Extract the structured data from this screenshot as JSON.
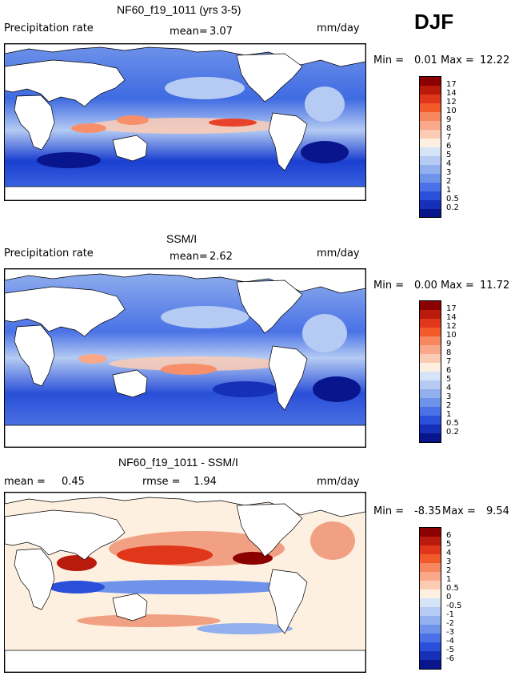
{
  "season": "DJF",
  "panels": [
    {
      "title": "NF60_f19_1011 (yrs 3-5)",
      "variable": "Precipitation rate",
      "stat_label": "mean=",
      "stat_value": "3.07",
      "units": "mm/day",
      "min_label": "Min =",
      "min_value": "0.01",
      "max_label": "Max =",
      "max_value": "12.22"
    },
    {
      "title": "SSM/I",
      "variable": "Precipitation rate",
      "stat_label": "mean=",
      "stat_value": "2.62",
      "units": "mm/day",
      "min_label": "Min =",
      "min_value": "0.00",
      "max_label": "Max =",
      "max_value": "11.72"
    },
    {
      "title": "NF60_f19_1011 - SSM/I",
      "mean_label": "mean =",
      "mean_value": "0.45",
      "rmse_label": "rmse =",
      "rmse_value": "1.94",
      "units": "mm/day",
      "min_label": "Min =",
      "min_value": "-8.35",
      "max_label": "Max =",
      "max_value": "9.54"
    }
  ],
  "colorbar_precip": {
    "levels": [
      "17",
      "14",
      "12",
      "10",
      "9",
      "8",
      "7",
      "6",
      "5",
      "4",
      "3",
      "2",
      "1",
      "0.5",
      "0.2"
    ],
    "colors": [
      "#8b0000",
      "#b81a0c",
      "#e0361a",
      "#f25a2a",
      "#f7875f",
      "#f9a889",
      "#fbcbb4",
      "#fdf0e0",
      "#d6e4f8",
      "#b5cbf3",
      "#92b0ee",
      "#6f93ea",
      "#4a72e6",
      "#2a4fd8",
      "#1730b8",
      "#08158c"
    ]
  },
  "colorbar_diff": {
    "levels": [
      "6",
      "5",
      "4",
      "3",
      "2",
      "1",
      "0.5",
      "0",
      "-0.5",
      "-1",
      "-2",
      "-3",
      "-4",
      "-5",
      "-6"
    ],
    "colors": [
      "#8b0000",
      "#b81a0c",
      "#e0361a",
      "#f25a2a",
      "#f7875f",
      "#f9a889",
      "#fbcbb4",
      "#fdf0e0",
      "#d6e4f8",
      "#b5cbf3",
      "#92b0ee",
      "#6f93ea",
      "#4a72e6",
      "#2a4fd8",
      "#1730b8",
      "#08158c"
    ]
  },
  "colors": {
    "ocean_dry": "#1a3fd0",
    "ocean_mid": "#5f86e8",
    "ocean_light": "#b7cdf3",
    "rain_red": "#e8432a",
    "rain_orange": "#f7906a",
    "diff_pos": "#f2a083",
    "diff_neg": "#6f93ea",
    "land": "#ffffff"
  }
}
